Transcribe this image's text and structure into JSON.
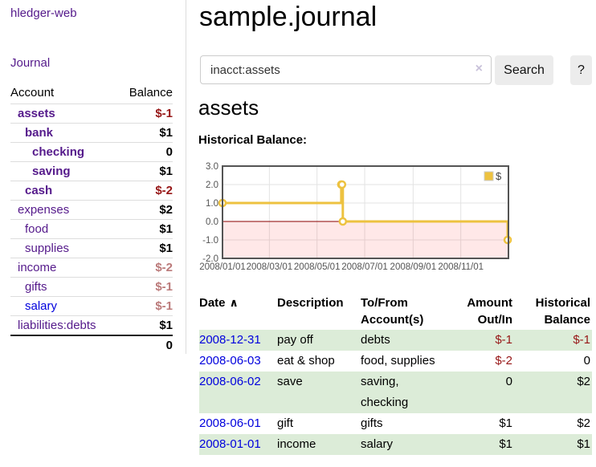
{
  "app": {
    "title": "hledger-web",
    "nav_journal": "Journal"
  },
  "sidebar": {
    "table": {
      "col_account": "Account",
      "col_balance": "Balance",
      "rows": [
        {
          "account": "assets",
          "balance": "$-1"
        },
        {
          "account": "bank",
          "balance": "$1"
        },
        {
          "account": "checking",
          "balance": "0"
        },
        {
          "account": "saving",
          "balance": "$1"
        },
        {
          "account": "cash",
          "balance": "$-2"
        },
        {
          "account": "expenses",
          "balance": "$2"
        },
        {
          "account": "food",
          "balance": "$1"
        },
        {
          "account": "supplies",
          "balance": "$1"
        },
        {
          "account": "income",
          "balance": "$-2"
        },
        {
          "account": "gifts",
          "balance": "$-1"
        },
        {
          "account": "salary",
          "balance": "$-1"
        },
        {
          "account": "liabilities:debts",
          "balance": "$1"
        }
      ],
      "total": "0"
    }
  },
  "main": {
    "title": "sample.journal",
    "search": {
      "value": "inacct:assets",
      "clear_icon": "×",
      "button": "Search",
      "help_button": "?"
    },
    "heading": "assets",
    "chart_label": "Historical Balance:"
  },
  "chart_data": {
    "type": "line",
    "step": true,
    "title": "Historical Balance:",
    "series": [
      {
        "name": "$",
        "color": "#edc240",
        "points": [
          [
            "2008-01-01",
            1
          ],
          [
            "2008-06-01",
            2
          ],
          [
            "2008-06-02",
            2
          ],
          [
            "2008-06-03",
            0
          ],
          [
            "2008-12-31",
            -1
          ]
        ]
      }
    ],
    "xlim": [
      "2008-01-01",
      "2009-01-01"
    ],
    "ylim": [
      -2,
      3
    ],
    "x_ticks": [
      {
        "label": "2008/01/01",
        "date": "2008-01-01"
      },
      {
        "label": "2008/03/01",
        "date": "2008-03-01"
      },
      {
        "label": "2008/05/01",
        "date": "2008-05-01"
      },
      {
        "label": "2008/07/01",
        "date": "2008-07-01"
      },
      {
        "label": "2008/09/01",
        "date": "2008-09-01"
      },
      {
        "label": "2008/11/01",
        "date": "2008-11-01"
      }
    ],
    "y_ticks": [
      {
        "label": "3.0",
        "value": 3
      },
      {
        "label": "2.0",
        "value": 2
      },
      {
        "label": "1.0",
        "value": 1
      },
      {
        "label": "0.0",
        "value": 0
      },
      {
        "label": "-1.0",
        "value": -1
      },
      {
        "label": "-2.0",
        "value": -2
      }
    ],
    "grid": true,
    "legend": {
      "label": "$",
      "position": "top-right"
    },
    "negative_region_color": "rgba(255,0,0,0.09)",
    "zero_line_color": "#8b0000"
  },
  "transactions": {
    "headers": {
      "date": "Date",
      "sort_icon": "∧",
      "description": "Description",
      "account": "To/From Account(s)",
      "amount": "Amount Out/In",
      "balance": "Historical Balance"
    },
    "rows": [
      {
        "date": "2008-12-31",
        "description": "pay off",
        "account": "debts",
        "amount": "$-1",
        "balance": "$-1"
      },
      {
        "date": "2008-06-03",
        "description": "eat & shop",
        "account": "food, supplies",
        "amount": "$-2",
        "balance": "0"
      },
      {
        "date": "2008-06-02",
        "description": "save",
        "account": "saving, checking",
        "amount": "0",
        "balance": "$2"
      },
      {
        "date": "2008-06-01",
        "description": "gift",
        "account": "gifts",
        "amount": "$1",
        "balance": "$2"
      },
      {
        "date": "2008-01-01",
        "description": "income",
        "account": "salary",
        "amount": "$1",
        "balance": "$1"
      }
    ]
  }
}
